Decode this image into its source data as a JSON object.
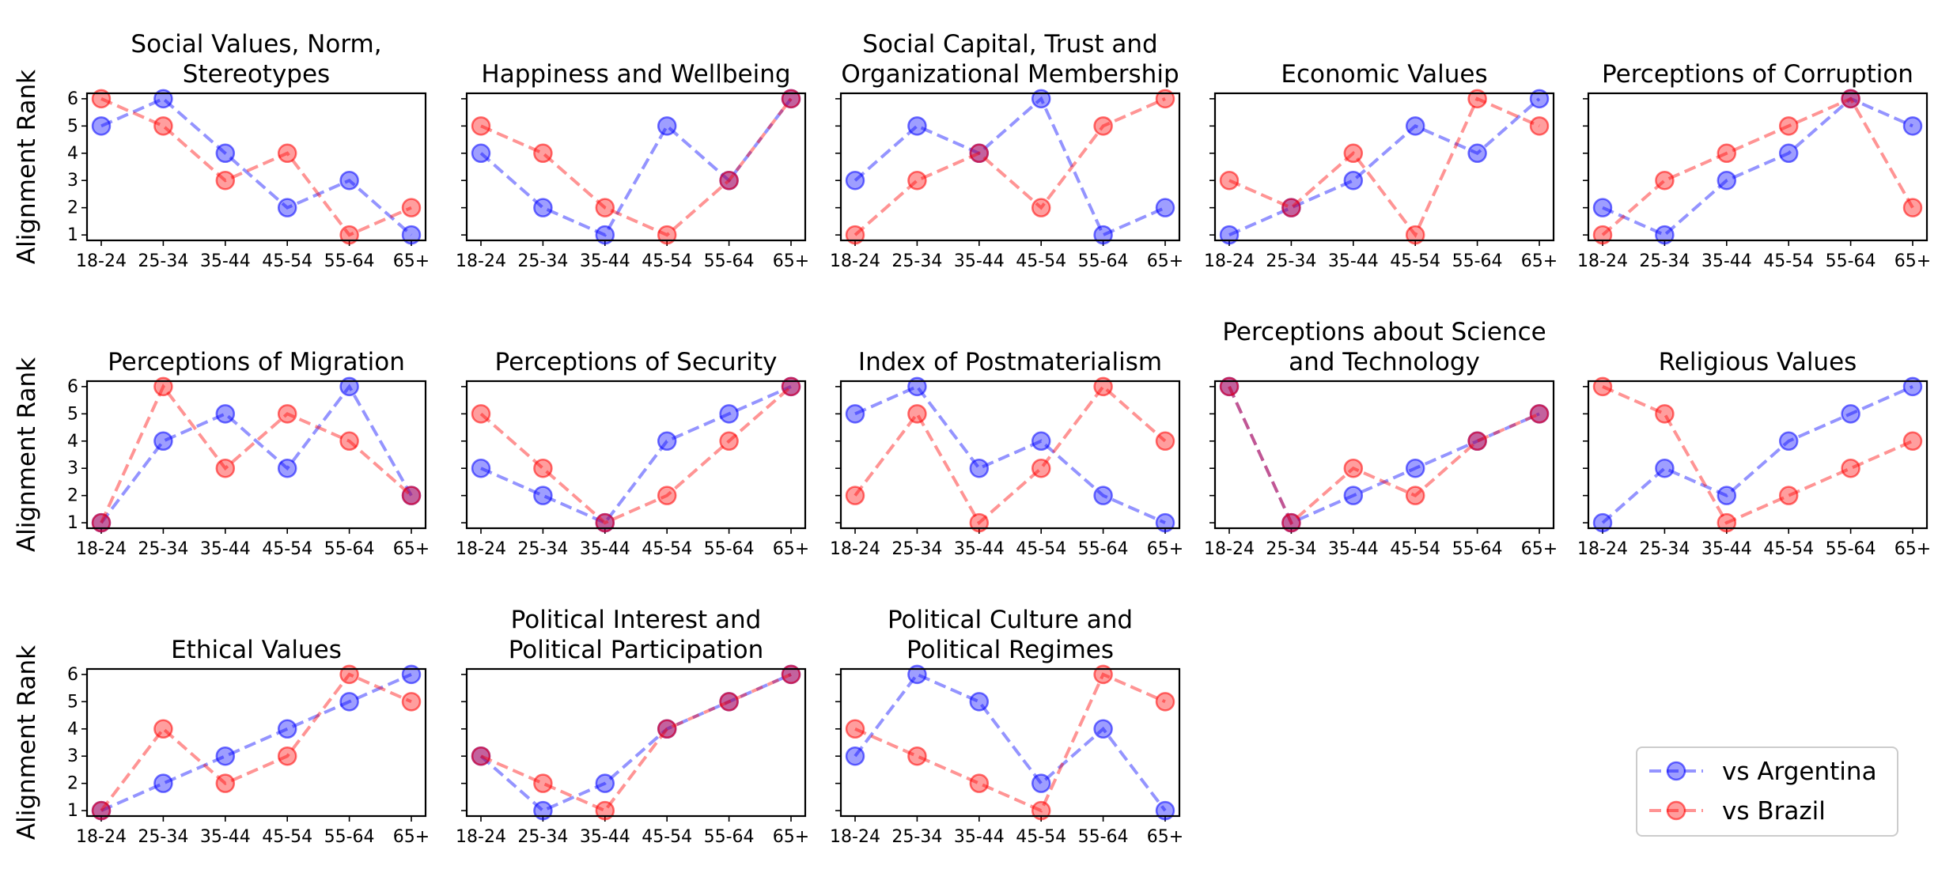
{
  "chart_data": {
    "type": "line",
    "ylabel": "Alignment Rank",
    "categories": [
      "18-24",
      "25-34",
      "35-44",
      "45-54",
      "55-64",
      "65+"
    ],
    "yticks": [
      1,
      2,
      3,
      4,
      5,
      6
    ],
    "ylim": [
      0.8,
      6.2
    ],
    "series_styles": [
      {
        "name": "vs Argentina",
        "color": "#0000ff"
      },
      {
        "name": "vs Brazil",
        "color": "#ff0000"
      }
    ],
    "legend": {
      "location": "bottom-right",
      "entries": [
        "vs Argentina",
        "vs Brazil"
      ]
    },
    "panels": [
      {
        "title": [
          "Social Values, Norm,",
          "Stereotypes"
        ],
        "series": [
          {
            "name": "vs Argentina",
            "values": [
              5,
              6,
              4,
              2,
              3,
              1
            ]
          },
          {
            "name": "vs Brazil",
            "values": [
              6,
              5,
              3,
              4,
              1,
              2
            ]
          }
        ]
      },
      {
        "title": [
          "Happiness and Wellbeing"
        ],
        "series": [
          {
            "name": "vs Argentina",
            "values": [
              4,
              2,
              1,
              5,
              3,
              6
            ]
          },
          {
            "name": "vs Brazil",
            "values": [
              5,
              4,
              2,
              1,
              3,
              6
            ]
          }
        ]
      },
      {
        "title": [
          "Social Capital, Trust and",
          "Organizational Membership"
        ],
        "series": [
          {
            "name": "vs Argentina",
            "values": [
              3,
              5,
              4,
              6,
              1,
              2
            ]
          },
          {
            "name": "vs Brazil",
            "values": [
              1,
              3,
              4,
              2,
              5,
              6
            ]
          }
        ]
      },
      {
        "title": [
          "Economic Values"
        ],
        "series": [
          {
            "name": "vs Argentina",
            "values": [
              1,
              2,
              3,
              5,
              4,
              6
            ]
          },
          {
            "name": "vs Brazil",
            "values": [
              3,
              2,
              4,
              1,
              6,
              5
            ]
          }
        ]
      },
      {
        "title": [
          "Perceptions of Corruption"
        ],
        "series": [
          {
            "name": "vs Argentina",
            "values": [
              2,
              1,
              3,
              4,
              6,
              5
            ]
          },
          {
            "name": "vs Brazil",
            "values": [
              1,
              3,
              4,
              5,
              6,
              2
            ]
          }
        ]
      },
      {
        "title": [
          "Perceptions of Migration"
        ],
        "series": [
          {
            "name": "vs Argentina",
            "values": [
              1,
              4,
              5,
              3,
              6,
              2
            ]
          },
          {
            "name": "vs Brazil",
            "values": [
              1,
              6,
              3,
              5,
              4,
              2
            ]
          }
        ]
      },
      {
        "title": [
          "Perceptions of Security"
        ],
        "series": [
          {
            "name": "vs Argentina",
            "values": [
              3,
              2,
              1,
              4,
              5,
              6
            ]
          },
          {
            "name": "vs Brazil",
            "values": [
              5,
              3,
              1,
              2,
              4,
              6
            ]
          }
        ]
      },
      {
        "title": [
          "Index of Postmaterialism"
        ],
        "series": [
          {
            "name": "vs Argentina",
            "values": [
              5,
              6,
              3,
              4,
              2,
              1
            ]
          },
          {
            "name": "vs Brazil",
            "values": [
              2,
              5,
              1,
              3,
              6,
              4
            ]
          }
        ]
      },
      {
        "title": [
          "Perceptions about Science",
          "and Technology"
        ],
        "series": [
          {
            "name": "vs Argentina",
            "values": [
              6,
              1,
              2,
              3,
              4,
              5
            ]
          },
          {
            "name": "vs Brazil",
            "values": [
              6,
              1,
              3,
              2,
              4,
              5
            ]
          }
        ]
      },
      {
        "title": [
          "Religious Values"
        ],
        "series": [
          {
            "name": "vs Argentina",
            "values": [
              1,
              3,
              2,
              4,
              5,
              6
            ]
          },
          {
            "name": "vs Brazil",
            "values": [
              6,
              5,
              1,
              2,
              3,
              4
            ]
          }
        ]
      },
      {
        "title": [
          "Ethical Values"
        ],
        "series": [
          {
            "name": "vs Argentina",
            "values": [
              1,
              2,
              3,
              4,
              5,
              6
            ]
          },
          {
            "name": "vs Brazil",
            "values": [
              1,
              4,
              2,
              3,
              6,
              5
            ]
          }
        ]
      },
      {
        "title": [
          "Political Interest and",
          "Political Participation"
        ],
        "series": [
          {
            "name": "vs Argentina",
            "values": [
              3,
              1,
              2,
              4,
              5,
              6
            ]
          },
          {
            "name": "vs Brazil",
            "values": [
              3,
              2,
              1,
              4,
              5,
              6
            ]
          }
        ]
      },
      {
        "title": [
          "Political Culture and",
          "Political Regimes"
        ],
        "series": [
          {
            "name": "vs Argentina",
            "values": [
              3,
              6,
              5,
              2,
              4,
              1
            ]
          },
          {
            "name": "vs Brazil",
            "values": [
              4,
              3,
              2,
              1,
              6,
              5
            ]
          }
        ]
      }
    ]
  }
}
